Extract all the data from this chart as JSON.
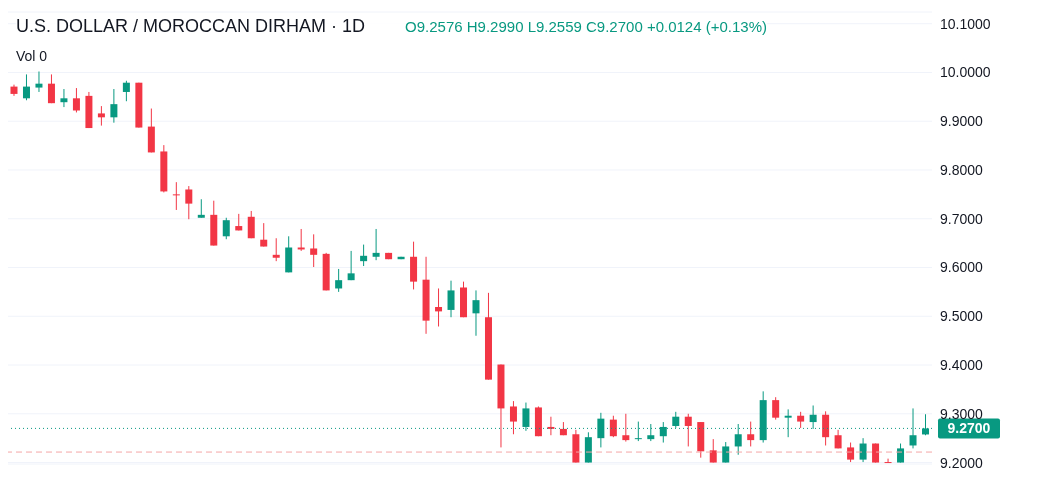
{
  "chart_data": {
    "type": "candlestick",
    "title": "U.S. DOLLAR / MOROCCAN DIRHAM · 1D",
    "subtitle": "O9.2576 H9.2990 L9.2559 C9.2700 +0.0124 (+0.13%)",
    "annotations": [
      "Vol 0"
    ],
    "categories": [
      null,
      null,
      null,
      null,
      null,
      null,
      null,
      null,
      null,
      null,
      null,
      null,
      null,
      null,
      null,
      null,
      null,
      null,
      null,
      null,
      null,
      null,
      null,
      null,
      null,
      null,
      null,
      null,
      null,
      null,
      null,
      null,
      null,
      null,
      null,
      null,
      null,
      null,
      null,
      null,
      null,
      null,
      null,
      null,
      null,
      null,
      null,
      null,
      null,
      null,
      null,
      null,
      null,
      null,
      null,
      null,
      null,
      null,
      null,
      null,
      null,
      null,
      null,
      null,
      null,
      null,
      null,
      null,
      null,
      null,
      null,
      null,
      null,
      null
    ],
    "ohlc": [
      [
        9.971,
        9.975,
        9.952,
        9.956
      ],
      [
        9.947,
        9.996,
        9.943,
        9.971
      ],
      [
        9.969,
        10.002,
        9.96,
        9.977
      ],
      [
        9.977,
        9.996,
        9.937,
        9.937
      ],
      [
        9.939,
        9.966,
        9.929,
        9.947
      ],
      [
        9.947,
        9.968,
        9.918,
        9.922
      ],
      [
        9.952,
        9.96,
        9.886,
        9.886
      ],
      [
        9.916,
        9.931,
        9.891,
        9.908
      ],
      [
        9.908,
        9.966,
        9.897,
        9.935
      ],
      [
        9.96,
        9.983,
        9.941,
        9.979
      ],
      [
        9.979,
        9.979,
        9.887,
        9.887
      ],
      [
        9.889,
        9.926,
        9.836,
        9.836
      ],
      [
        9.838,
        9.851,
        9.754,
        9.756
      ],
      [
        9.75,
        9.775,
        9.718,
        9.748
      ],
      [
        9.76,
        9.767,
        9.699,
        9.731
      ],
      [
        9.702,
        9.74,
        9.702,
        9.708
      ],
      [
        9.708,
        9.737,
        9.645,
        9.645
      ],
      [
        9.664,
        9.702,
        9.658,
        9.697
      ],
      [
        9.685,
        9.71,
        9.676,
        9.676
      ],
      [
        9.704,
        9.716,
        9.66,
        9.66
      ],
      [
        9.657,
        9.691,
        9.643,
        9.643
      ],
      [
        9.626,
        9.66,
        9.613,
        9.62
      ],
      [
        9.59,
        9.664,
        9.59,
        9.641
      ],
      [
        9.641,
        9.679,
        9.634,
        9.637
      ],
      [
        9.639,
        9.668,
        9.601,
        9.626
      ],
      [
        9.628,
        9.63,
        9.553,
        9.553
      ],
      [
        9.557,
        9.597,
        9.55,
        9.574
      ],
      [
        9.574,
        9.634,
        9.574,
        9.588
      ],
      [
        9.613,
        9.647,
        9.603,
        9.624
      ],
      [
        9.622,
        9.679,
        9.615,
        9.63
      ],
      [
        9.63,
        9.63,
        9.617,
        9.617
      ],
      [
        9.617,
        9.622,
        9.617,
        9.622
      ],
      [
        9.622,
        9.653,
        9.555,
        9.571
      ],
      [
        9.575,
        9.622,
        9.464,
        9.491
      ],
      [
        9.519,
        9.557,
        9.479,
        9.51
      ],
      [
        9.513,
        9.573,
        9.498,
        9.553
      ],
      [
        9.559,
        9.571,
        9.498,
        9.498
      ],
      [
        9.506,
        9.553,
        9.46,
        9.533
      ],
      [
        9.498,
        9.548,
        9.37,
        9.37
      ],
      [
        9.401,
        9.401,
        9.231,
        9.311
      ],
      [
        9.315,
        9.326,
        9.258,
        9.284
      ],
      [
        9.273,
        9.323,
        9.265,
        9.311
      ],
      [
        9.313,
        9.315,
        9.254,
        9.254
      ],
      [
        9.273,
        9.294,
        9.256,
        9.269
      ],
      [
        9.269,
        9.283,
        9.256,
        9.256
      ],
      [
        9.258,
        9.267,
        9.2,
        9.2
      ],
      [
        9.2,
        9.262,
        9.2,
        9.252
      ],
      [
        9.25,
        9.302,
        9.231,
        9.29
      ],
      [
        9.288,
        9.296,
        9.252,
        9.254
      ],
      [
        9.256,
        9.3,
        9.243,
        9.246
      ],
      [
        9.248,
        9.284,
        9.244,
        9.25
      ],
      [
        9.248,
        9.279,
        9.244,
        9.256
      ],
      [
        9.254,
        9.283,
        9.241,
        9.273
      ],
      [
        9.275,
        9.304,
        9.271,
        9.294
      ],
      [
        9.294,
        9.3,
        9.233,
        9.275
      ],
      [
        9.283,
        9.283,
        9.21,
        9.223
      ],
      [
        9.225,
        9.248,
        9.2,
        9.2
      ],
      [
        9.2,
        9.242,
        9.2,
        9.233
      ],
      [
        9.233,
        9.279,
        9.216,
        9.258
      ],
      [
        9.258,
        9.284,
        9.233,
        9.246
      ],
      [
        9.246,
        9.346,
        9.241,
        9.328
      ],
      [
        9.328,
        9.334,
        9.288,
        9.292
      ],
      [
        9.292,
        9.309,
        9.252,
        9.296
      ],
      [
        9.296,
        9.304,
        9.271,
        9.284
      ],
      [
        9.283,
        9.317,
        9.269,
        9.298
      ],
      [
        9.298,
        9.305,
        9.235,
        9.252
      ],
      [
        9.256,
        9.267,
        9.229,
        9.229
      ],
      [
        9.231,
        9.241,
        9.201,
        9.206
      ],
      [
        9.206,
        9.25,
        9.201,
        9.239
      ],
      [
        9.239,
        9.239,
        9.2,
        9.2
      ],
      [
        9.201,
        9.208,
        9.2,
        9.2
      ],
      [
        9.2,
        9.239,
        9.2,
        9.229
      ],
      [
        9.235,
        9.311,
        9.229,
        9.256
      ],
      [
        9.2576,
        9.299,
        9.2559,
        9.27
      ]
    ],
    "colors": [
      "#f23645",
      "#089981",
      "#089981",
      "#f23645",
      "#089981",
      "#f23645",
      "#f23645",
      "#f23645",
      "#089981",
      "#089981",
      "#f23645",
      "#f23645",
      "#f23645",
      "#f23645",
      "#f23645",
      "#089981",
      "#f23645",
      "#089981",
      "#f23645",
      "#f23645",
      "#f23645",
      "#f23645",
      "#089981",
      "#f23645",
      "#f23645",
      "#f23645",
      "#089981",
      "#089981",
      "#089981",
      "#089981",
      "#f23645",
      "#089981",
      "#f23645",
      "#f23645",
      "#f23645",
      "#089981",
      "#f23645",
      "#089981",
      "#f23645",
      "#f23645",
      "#f23645",
      "#089981",
      "#f23645",
      "#f23645",
      "#f23645",
      "#f23645",
      "#089981",
      "#089981",
      "#f23645",
      "#f23645",
      "#089981",
      "#089981",
      "#089981",
      "#089981",
      "#f23645",
      "#f23645",
      "#f23645",
      "#089981",
      "#089981",
      "#f23645",
      "#089981",
      "#f23645",
      "#089981",
      "#f23645",
      "#089981",
      "#f23645",
      "#f23645",
      "#f23645",
      "#089981",
      "#f23645",
      "#f23645",
      "#089981",
      "#089981",
      "#089981"
    ],
    "ylim": [
      9.197,
      10.124
    ],
    "yticks": [
      {
        "value": 9.2,
        "label": "9.2000"
      },
      {
        "value": 9.3,
        "label": "9.3000"
      },
      {
        "value": 9.4,
        "label": "9.4000"
      },
      {
        "value": 9.5,
        "label": "9.5000"
      },
      {
        "value": 9.6,
        "label": "9.6000"
      },
      {
        "value": 9.7,
        "label": "9.7000"
      },
      {
        "value": 9.8,
        "label": "9.8000"
      },
      {
        "value": 9.9,
        "label": "9.9000"
      },
      {
        "value": 10.0,
        "label": "10.0000"
      },
      {
        "value": 10.1,
        "label": "10.1000"
      }
    ],
    "ref_lines": [
      {
        "axis": "y",
        "value": 9.27,
        "label": "9.2700",
        "color": "#089981",
        "line_style": "dotted"
      },
      {
        "axis": "y",
        "value": 9.2215,
        "color": "#f4a6a6",
        "line_style": "dashed"
      }
    ],
    "grid": "y",
    "tick_labels": "y"
  }
}
